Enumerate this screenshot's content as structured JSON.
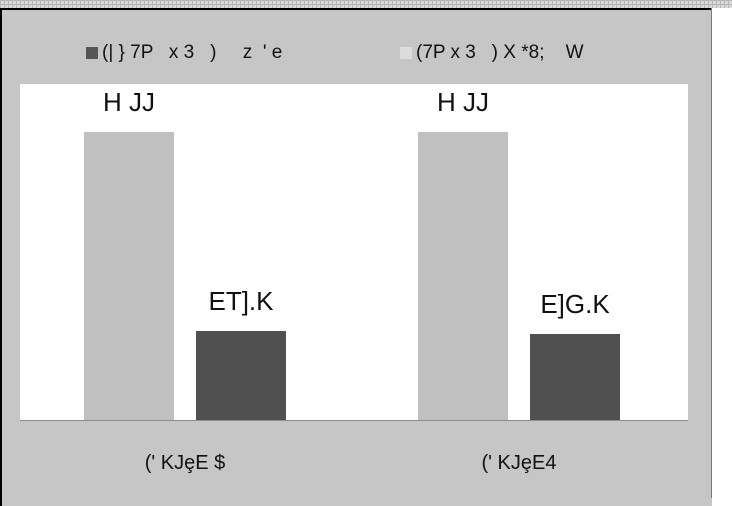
{
  "chart_data": {
    "type": "bar",
    "title": "",
    "xlabel": "",
    "ylabel": "",
    "categories": [
      "(' KJȩE $",
      "(' KJȩE4"
    ],
    "series": [
      {
        "name": "(| } 7P   x 3   )     z  ' e",
        "color": "#c0c0c0",
        "values": [
          1.0,
          1.0
        ],
        "labels": [
          "H JJ",
          "H JJ"
        ]
      },
      {
        "name": "(7P x 3   ) X *8;    W",
        "color": "#505050",
        "values": [
          0.31,
          0.3
        ],
        "labels": [
          "ET].K",
          "E]G.K"
        ]
      }
    ],
    "ylim": [
      0,
      1.0
    ],
    "grid": false,
    "legend_position": "top",
    "legend_swatch_colors": [
      "#555555",
      "#dcdcdc"
    ],
    "plot_background": "#ffffff",
    "frame_background": "#c6c6c6"
  }
}
